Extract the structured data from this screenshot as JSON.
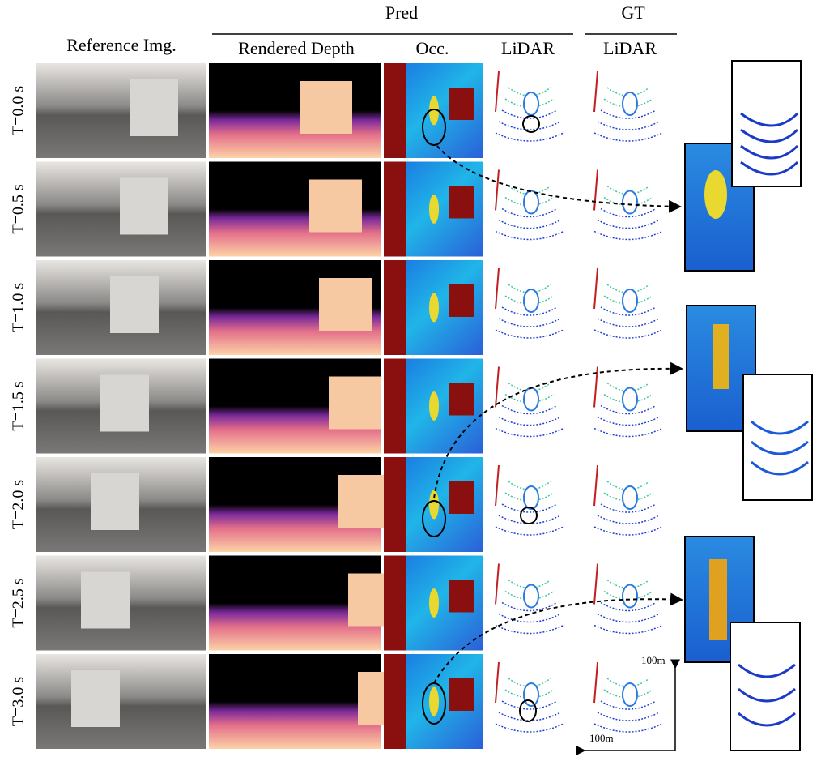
{
  "header": {
    "pred": "Pred",
    "gt": "GT"
  },
  "columns": [
    "Reference Img.",
    "Rendered Depth",
    "Occ.",
    "LiDAR",
    "LiDAR"
  ],
  "rows": [
    "T=0.0 s",
    "T=0.5 s",
    "T=1.0 s",
    "T=1.5 s",
    "T=2.0 s",
    "T=2.5 s",
    "T=3.0 s"
  ],
  "scale": {
    "vertical": "100m",
    "horizontal": "100m"
  }
}
